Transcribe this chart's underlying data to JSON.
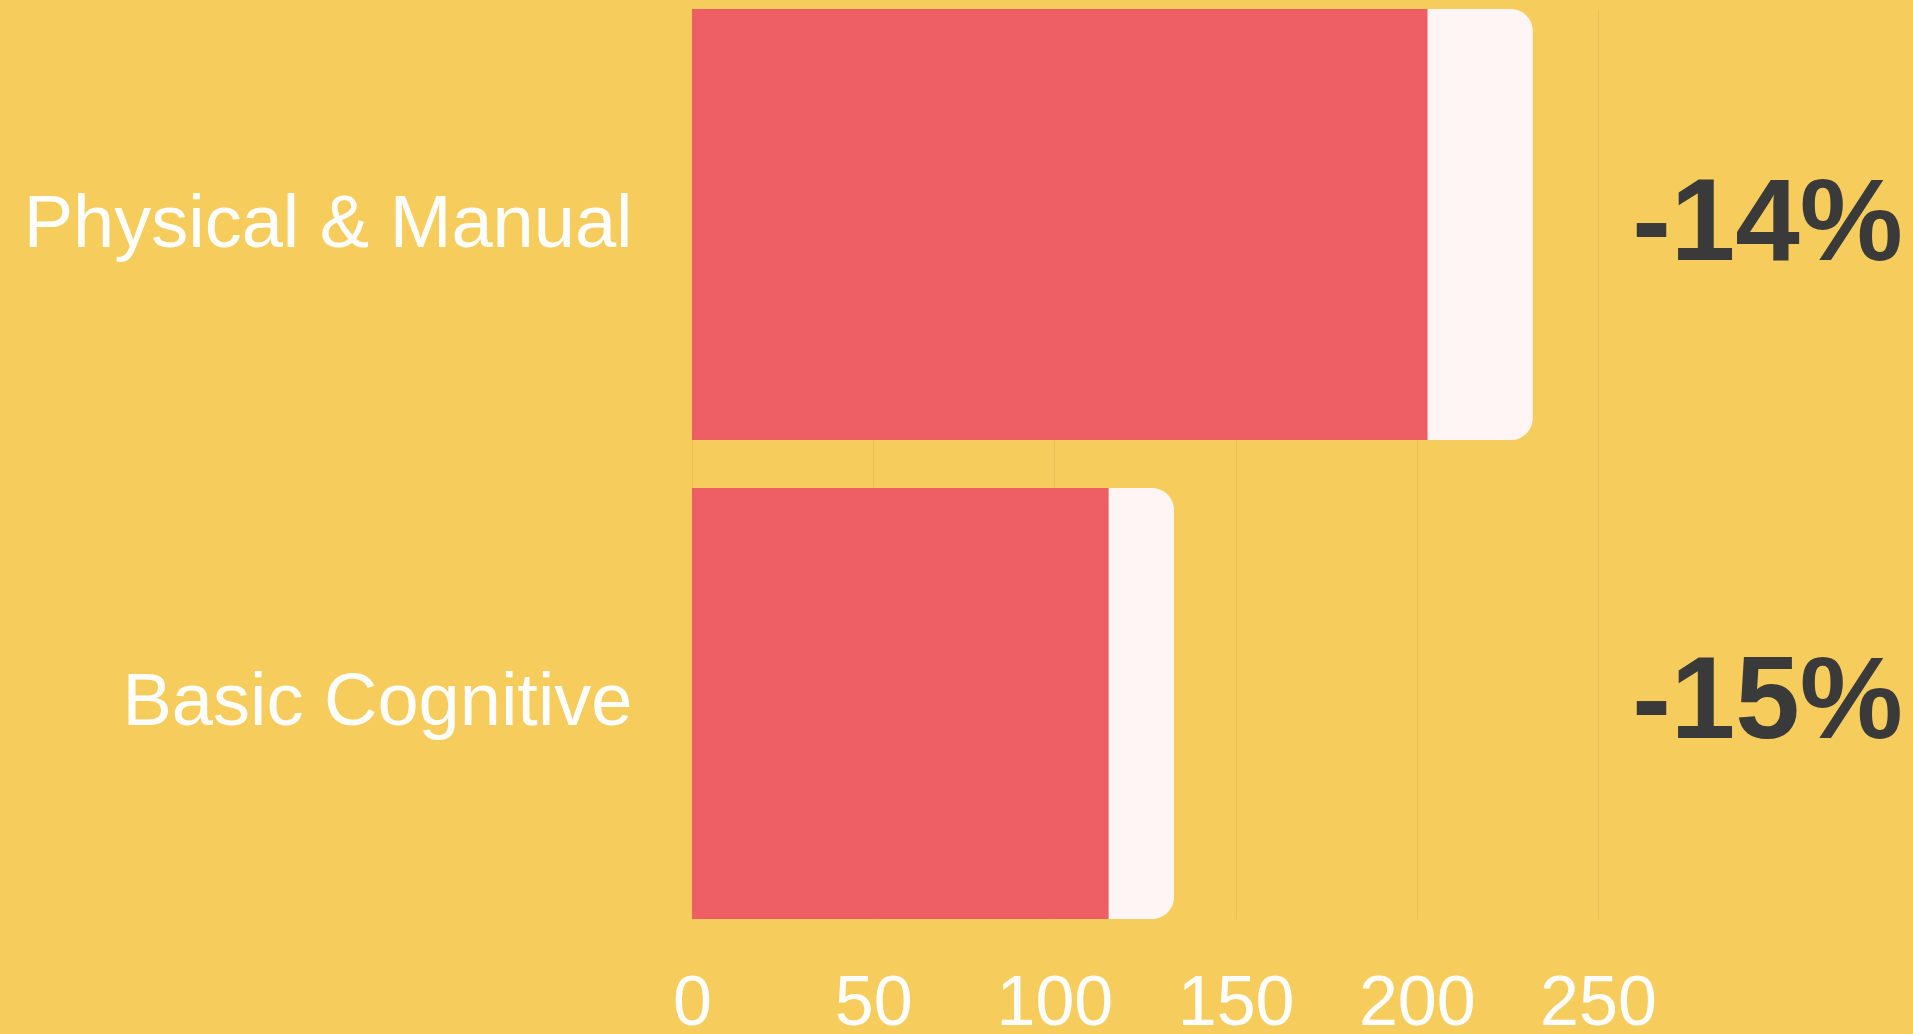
{
  "chart_data": {
    "type": "bar",
    "orientation": "horizontal",
    "stacked": true,
    "categories": [
      "Physical & Manual",
      "Basic Cognitive"
    ],
    "series": [
      {
        "color": "#ed5f65",
        "values": [
          203,
          115
        ]
      },
      {
        "color": "#fff5f5",
        "values": [
          29,
          18
        ]
      }
    ],
    "xlim": [
      0,
      250
    ],
    "xticks": [
      0,
      50,
      100,
      150,
      200,
      250
    ],
    "grid": "x",
    "annotations": [
      "-14%",
      "-15%"
    ]
  }
}
